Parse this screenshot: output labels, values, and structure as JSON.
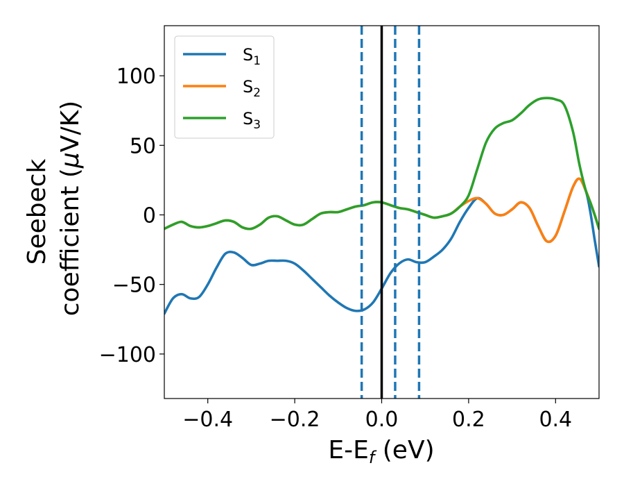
{
  "chart_data": {
    "type": "line",
    "title": "",
    "xlabel": "E-E",
    "xlabel_sub": "f",
    "xlabel_unit": " (eV)",
    "ylabel_line1": "Seebeck",
    "ylabel_line2_a": "coefficient  (",
    "ylabel_line2_mu": "μ",
    "ylabel_line2_b": "V/K)",
    "xlim": [
      -0.5,
      0.5
    ],
    "ylim": [
      -132,
      136
    ],
    "xticks": [
      -0.4,
      -0.2,
      0.0,
      0.2,
      0.4
    ],
    "xtick_labels": [
      "−0.4",
      "−0.2",
      "0.0",
      "0.2",
      "0.4"
    ],
    "yticks": [
      -100,
      -50,
      0,
      50,
      100
    ],
    "ytick_labels": [
      "−100",
      "−50",
      "0",
      "50",
      "100"
    ],
    "grid": false,
    "legend_position": "top-left",
    "vlines": [
      {
        "x": -0.046,
        "style": "dashed",
        "color": "#1f77b4"
      },
      {
        "x": 0.0,
        "style": "solid",
        "color": "#000000"
      },
      {
        "x": 0.031,
        "style": "dashed",
        "color": "#1f77b4"
      },
      {
        "x": 0.086,
        "style": "dashed",
        "color": "#1f77b4"
      }
    ],
    "series": [
      {
        "name": "S",
        "sub": "1",
        "color": "#1f77b4",
        "points": [
          [
            -0.5,
            -71
          ],
          [
            -0.48,
            -60
          ],
          [
            -0.46,
            -57
          ],
          [
            -0.44,
            -60
          ],
          [
            -0.42,
            -59
          ],
          [
            -0.4,
            -50
          ],
          [
            -0.38,
            -38
          ],
          [
            -0.36,
            -28
          ],
          [
            -0.34,
            -27
          ],
          [
            -0.32,
            -31
          ],
          [
            -0.3,
            -36
          ],
          [
            -0.28,
            -35
          ],
          [
            -0.26,
            -33
          ],
          [
            -0.24,
            -33
          ],
          [
            -0.22,
            -33
          ],
          [
            -0.2,
            -35
          ],
          [
            -0.18,
            -40
          ],
          [
            -0.16,
            -46
          ],
          [
            -0.14,
            -52
          ],
          [
            -0.12,
            -58
          ],
          [
            -0.1,
            -63
          ],
          [
            -0.08,
            -67
          ],
          [
            -0.06,
            -69
          ],
          [
            -0.04,
            -68
          ],
          [
            -0.02,
            -63
          ],
          [
            0.0,
            -53
          ],
          [
            0.02,
            -42
          ],
          [
            0.04,
            -35
          ],
          [
            0.06,
            -32
          ],
          [
            0.08,
            -34
          ],
          [
            0.1,
            -34
          ],
          [
            0.12,
            -30
          ],
          [
            0.14,
            -25
          ],
          [
            0.16,
            -17
          ],
          [
            0.18,
            -5
          ],
          [
            0.2,
            5
          ],
          [
            0.22,
            12
          ],
          [
            0.24,
            8
          ],
          [
            0.26,
            1
          ],
          [
            0.28,
            0
          ],
          [
            0.3,
            4
          ],
          [
            0.32,
            9
          ],
          [
            0.34,
            5
          ],
          [
            0.36,
            -8
          ],
          [
            0.38,
            -19
          ],
          [
            0.4,
            -15
          ],
          [
            0.42,
            2
          ],
          [
            0.44,
            20
          ],
          [
            0.455,
            26
          ],
          [
            0.47,
            17
          ],
          [
            0.48,
            2
          ],
          [
            0.49,
            -18
          ],
          [
            0.5,
            -37
          ]
        ]
      },
      {
        "name": "S",
        "sub": "2",
        "color": "#ff7f0e",
        "points": [
          [
            -0.5,
            -10
          ],
          [
            -0.48,
            -7
          ],
          [
            -0.46,
            -5
          ],
          [
            -0.44,
            -8
          ],
          [
            -0.42,
            -9
          ],
          [
            -0.4,
            -8
          ],
          [
            -0.38,
            -6
          ],
          [
            -0.36,
            -4
          ],
          [
            -0.34,
            -5
          ],
          [
            -0.32,
            -9
          ],
          [
            -0.3,
            -10
          ],
          [
            -0.28,
            -7
          ],
          [
            -0.26,
            -2
          ],
          [
            -0.24,
            -1
          ],
          [
            -0.22,
            -4
          ],
          [
            -0.2,
            -7
          ],
          [
            -0.18,
            -7
          ],
          [
            -0.16,
            -3
          ],
          [
            -0.14,
            1
          ],
          [
            -0.12,
            2
          ],
          [
            -0.1,
            2
          ],
          [
            -0.08,
            4
          ],
          [
            -0.06,
            6
          ],
          [
            -0.04,
            7
          ],
          [
            -0.02,
            9
          ],
          [
            0.0,
            9
          ],
          [
            0.02,
            7
          ],
          [
            0.04,
            5
          ],
          [
            0.06,
            4
          ],
          [
            0.08,
            2
          ],
          [
            0.1,
            0
          ],
          [
            0.12,
            -2
          ],
          [
            0.14,
            -1
          ],
          [
            0.16,
            1
          ],
          [
            0.18,
            6
          ],
          [
            0.2,
            10
          ],
          [
            0.22,
            12
          ],
          [
            0.24,
            8
          ],
          [
            0.26,
            1
          ],
          [
            0.28,
            0
          ],
          [
            0.3,
            4
          ],
          [
            0.32,
            9
          ],
          [
            0.34,
            5
          ],
          [
            0.36,
            -8
          ],
          [
            0.38,
            -19
          ],
          [
            0.4,
            -15
          ],
          [
            0.42,
            2
          ],
          [
            0.44,
            20
          ],
          [
            0.455,
            26
          ],
          [
            0.47,
            17
          ],
          [
            0.48,
            9
          ],
          [
            0.49,
            0
          ],
          [
            0.5,
            -10
          ]
        ]
      },
      {
        "name": "S",
        "sub": "3",
        "color": "#2ca02c",
        "points": [
          [
            -0.5,
            -10
          ],
          [
            -0.48,
            -7
          ],
          [
            -0.46,
            -5
          ],
          [
            -0.44,
            -8
          ],
          [
            -0.42,
            -9
          ],
          [
            -0.4,
            -8
          ],
          [
            -0.38,
            -6
          ],
          [
            -0.36,
            -4
          ],
          [
            -0.34,
            -5
          ],
          [
            -0.32,
            -9
          ],
          [
            -0.3,
            -10
          ],
          [
            -0.28,
            -7
          ],
          [
            -0.26,
            -2
          ],
          [
            -0.24,
            -1
          ],
          [
            -0.22,
            -4
          ],
          [
            -0.2,
            -7
          ],
          [
            -0.18,
            -7
          ],
          [
            -0.16,
            -3
          ],
          [
            -0.14,
            1
          ],
          [
            -0.12,
            2
          ],
          [
            -0.1,
            2
          ],
          [
            -0.08,
            4
          ],
          [
            -0.06,
            6
          ],
          [
            -0.04,
            7
          ],
          [
            -0.02,
            9
          ],
          [
            0.0,
            9
          ],
          [
            0.02,
            7
          ],
          [
            0.04,
            5
          ],
          [
            0.06,
            4
          ],
          [
            0.08,
            2
          ],
          [
            0.1,
            0
          ],
          [
            0.12,
            -2
          ],
          [
            0.14,
            -1
          ],
          [
            0.16,
            1
          ],
          [
            0.18,
            6
          ],
          [
            0.2,
            14
          ],
          [
            0.22,
            33
          ],
          [
            0.24,
            52
          ],
          [
            0.26,
            62
          ],
          [
            0.28,
            66
          ],
          [
            0.3,
            68
          ],
          [
            0.32,
            73
          ],
          [
            0.34,
            79
          ],
          [
            0.36,
            83
          ],
          [
            0.38,
            84
          ],
          [
            0.4,
            83
          ],
          [
            0.42,
            79
          ],
          [
            0.44,
            60
          ],
          [
            0.455,
            36
          ],
          [
            0.47,
            17
          ],
          [
            0.48,
            9
          ],
          [
            0.49,
            0
          ],
          [
            0.5,
            -10
          ]
        ]
      }
    ]
  }
}
